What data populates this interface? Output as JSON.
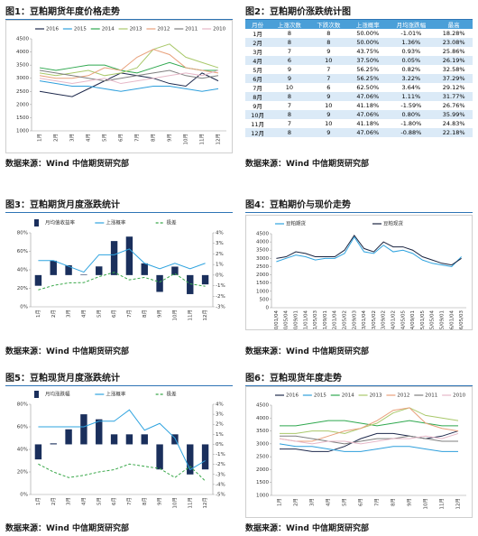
{
  "panels": [
    {
      "title": "图1：豆粕期货年度价格走势",
      "source": "数据来源：Wind 中信期货研究部",
      "chart_data": {
        "type": "line",
        "categories": [
          "1月",
          "2月",
          "3月",
          "4月",
          "5月",
          "6月",
          "7月",
          "8月",
          "9月",
          "10月",
          "11月",
          "12月"
        ],
        "series": [
          {
            "name": "2016",
            "color": "#1f2a4d",
            "values": [
              2500,
              2400,
              2300,
              2600,
              2900,
              3200,
              3100,
              3000,
              2800,
              2700,
              3200,
              2900
            ]
          },
          {
            "name": "2015",
            "color": "#2e9fdc",
            "values": [
              2900,
              2800,
              2700,
              2700,
              2600,
              2500,
              2600,
              2700,
              2700,
              2600,
              2500,
              2600
            ]
          },
          {
            "name": "2014",
            "color": "#2fa84f",
            "values": [
              3400,
              3300,
              3400,
              3500,
              3500,
              3300,
              3200,
              3400,
              3600,
              3400,
              3300,
              3300
            ]
          },
          {
            "name": "2013",
            "color": "#a9c86a",
            "values": [
              3200,
              3100,
              3200,
              3300,
              3100,
              3200,
              3400,
              4100,
              4300,
              3800,
              3600,
              3400
            ]
          },
          {
            "name": "2012",
            "color": "#e8a07a",
            "values": [
              3100,
              3000,
              3000,
              3100,
              3400,
              3300,
              3800,
              4100,
              3900,
              3400,
              3300,
              3200
            ]
          },
          {
            "name": "2011",
            "color": "#7f7f7f",
            "values": [
              3300,
              3200,
              3100,
              3000,
              2900,
              3000,
              3100,
              3200,
              3300,
              3100,
              3000,
              3100
            ]
          },
          {
            "name": "2010",
            "color": "#e6b8c8",
            "values": [
              3000,
              2900,
              2800,
              2900,
              3000,
              2800,
              2900,
              3000,
              3100,
              3200,
              3100,
              3300
            ]
          }
        ],
        "ylim": [
          1000,
          4500
        ],
        "yticks": [
          1000,
          1500,
          2000,
          2500,
          3000,
          3500,
          4000,
          4500
        ],
        "grid": false
      }
    },
    {
      "title": "图2：豆粕期价涨跌统计图",
      "source": "数据来源：Wind 中信期货研究部",
      "table": {
        "header": [
          "月份",
          "上涨次数",
          "下跌次数",
          "上涨概率",
          "月均涨跌幅",
          "最高"
        ],
        "rows": [
          [
            "1月",
            "8",
            "8",
            "50.00%",
            "-1.01%",
            "18.28%"
          ],
          [
            "2月",
            "8",
            "8",
            "50.00%",
            "1.36%",
            "23.08%"
          ],
          [
            "3月",
            "7",
            "9",
            "43.75%",
            "0.93%",
            "25.86%"
          ],
          [
            "4月",
            "6",
            "10",
            "37.50%",
            "0.05%",
            "26.19%"
          ],
          [
            "5月",
            "9",
            "7",
            "56.25%",
            "0.82%",
            "32.58%"
          ],
          [
            "6月",
            "9",
            "7",
            "56.25%",
            "3.22%",
            "37.29%"
          ],
          [
            "7月",
            "10",
            "6",
            "62.50%",
            "3.64%",
            "29.12%"
          ],
          [
            "8月",
            "8",
            "9",
            "47.06%",
            "1.11%",
            "31.77%"
          ],
          [
            "9月",
            "7",
            "10",
            "41.18%",
            "-1.59%",
            "26.76%"
          ],
          [
            "10月",
            "8",
            "9",
            "47.06%",
            "0.80%",
            "35.99%"
          ],
          [
            "11月",
            "7",
            "10",
            "41.18%",
            "-1.80%",
            "24.83%"
          ],
          [
            "12月",
            "8",
            "9",
            "47.06%",
            "-0.88%",
            "22.18%"
          ]
        ]
      }
    },
    {
      "title": "图3：豆粕期货月度涨跌统计",
      "source": "数据来源：Wind 中信期货研究部",
      "chart_data": {
        "type": "combo",
        "categories": [
          "1月",
          "2月",
          "3月",
          "4月",
          "5月",
          "6月",
          "7月",
          "8月",
          "9月",
          "10月",
          "11月",
          "12月"
        ],
        "series": [
          {
            "name": "月均值收益率",
            "type": "bar",
            "axis": "y2",
            "color": "#1a2f5c",
            "values": [
              -1.01,
              1.36,
              0.93,
              0.05,
              0.82,
              3.22,
              3.64,
              1.11,
              -1.59,
              0.8,
              -1.8,
              -0.88
            ]
          },
          {
            "name": "上涨概率",
            "type": "line",
            "color": "#2ea3df",
            "values": [
              50.0,
              50.0,
              43.75,
              37.5,
              56.25,
              56.25,
              62.5,
              47.06,
              41.18,
              47.06,
              41.18,
              47.06
            ]
          },
          {
            "name": "极差",
            "type": "line",
            "dash": true,
            "color": "#3aa84a",
            "values": [
              18.28,
              23.08,
              25.86,
              26.19,
              32.58,
              37.29,
              29.12,
              31.77,
              26.76,
              35.99,
              24.83,
              22.18
            ]
          }
        ],
        "ylim": [
          0,
          80
        ],
        "yticks": [
          {
            "value": 0,
            "label": "0%"
          },
          {
            "value": 20,
            "label": "20%"
          },
          {
            "value": 40,
            "label": "40%"
          },
          {
            "value": 60,
            "label": "60%"
          },
          {
            "value": 80,
            "label": "80%"
          }
        ],
        "y2lim": [
          -3,
          4
        ],
        "y2ticks": [
          {
            "value": -3,
            "label": "-3%"
          },
          {
            "value": -2,
            "label": "-2%"
          },
          {
            "value": -1,
            "label": "-1%"
          },
          {
            "value": 0,
            "label": "0%"
          },
          {
            "value": 1,
            "label": "1%"
          },
          {
            "value": 2,
            "label": "2%"
          },
          {
            "value": 3,
            "label": "3%"
          },
          {
            "value": 4,
            "label": "4%"
          }
        ],
        "grid": false
      }
    },
    {
      "title": "图4：豆粕期价与现价走势",
      "source": "数据来源：Wind 中信期货研究部",
      "chart_data": {
        "type": "line",
        "categories": [
          "2010/01/04",
          "2010/05/04",
          "2010/09/01",
          "2011/01/04",
          "2011/05/03",
          "2011/09/01",
          "2012/01/04",
          "2012/05/02",
          "2012/09/03",
          "2013/01/04",
          "2013/05/02",
          "2013/09/02",
          "2014/01/02",
          "2014/05/05",
          "2014/09/01",
          "2015/01/05",
          "2015/05/04",
          "2015/09/01",
          "2016/01/04",
          "2016/05/03"
        ],
        "series": [
          {
            "name": "豆粕期货",
            "color": "#2ea3df",
            "values": [
              2800,
              3000,
              3200,
              3100,
              2900,
              3000,
              3000,
              3300,
              4300,
              3400,
              3300,
              3800,
              3400,
              3500,
              3300,
              2900,
              2700,
              2600,
              2500,
              3100
            ]
          },
          {
            "name": "豆粕现货",
            "color": "#1a2440",
            "values": [
              3000,
              3100,
              3400,
              3300,
              3100,
              3100,
              3100,
              3500,
              4400,
              3600,
              3400,
              4000,
              3700,
              3700,
              3500,
              3100,
              2900,
              2700,
              2600,
              3000
            ]
          }
        ],
        "ylim": [
          0,
          4500
        ],
        "yticks": [
          0,
          500,
          1000,
          1500,
          2000,
          2500,
          3000,
          3500,
          4000,
          4500
        ],
        "grid": false
      }
    },
    {
      "title": "图5：豆粕现货月度涨跌统计",
      "source": "数据来源：Wind 中信期货研究部",
      "chart_data": {
        "type": "combo",
        "categories": [
          "1月",
          "2月",
          "3月",
          "4月",
          "5月",
          "6月",
          "7月",
          "8月",
          "9月",
          "10月",
          "11月",
          "12月"
        ],
        "series": [
          {
            "name": "月均涨跌幅",
            "type": "bar",
            "axis": "y2",
            "color": "#1a2f5c",
            "values": [
              -1.5,
              0.1,
              1.5,
              3.0,
              2.5,
              1.0,
              1.0,
              1.0,
              -2.5,
              1.0,
              -3.0,
              -2.5
            ]
          },
          {
            "name": "上涨概率",
            "type": "line",
            "color": "#2ea3df",
            "values": [
              60,
              60,
              60,
              60,
              65,
              65,
              75,
              57,
              63,
              50,
              22,
              30
            ]
          },
          {
            "name": "极差",
            "type": "line",
            "dash": true,
            "color": "#3aa84a",
            "values": [
              27,
              20,
              15,
              17,
              20,
              22,
              27,
              25,
              23,
              15,
              25,
              12
            ]
          }
        ],
        "ylim": [
          0,
          80
        ],
        "yticks": [
          {
            "value": 0,
            "label": "0%"
          },
          {
            "value": 20,
            "label": "20%"
          },
          {
            "value": 40,
            "label": "40%"
          },
          {
            "value": 60,
            "label": "60%"
          },
          {
            "value": 80,
            "label": "80%"
          }
        ],
        "y2lim": [
          -5,
          4
        ],
        "y2ticks": [
          {
            "value": -5,
            "label": "-5%"
          },
          {
            "value": -4,
            "label": "-4%"
          },
          {
            "value": -3,
            "label": "-3%"
          },
          {
            "value": -2,
            "label": "-2%"
          },
          {
            "value": -1,
            "label": "-1%"
          },
          {
            "value": 0,
            "label": "0%"
          },
          {
            "value": 1,
            "label": "1%"
          },
          {
            "value": 2,
            "label": "2%"
          },
          {
            "value": 3,
            "label": "3%"
          },
          {
            "value": 4,
            "label": "4%"
          }
        ],
        "grid": false
      }
    },
    {
      "title": "图6：豆粕现货年度走势",
      "source": "数据来源：Wind 中信期货研究部",
      "chart_data": {
        "type": "line",
        "categories": [
          "1月",
          "2月",
          "3月",
          "4月",
          "5月",
          "6月",
          "7月",
          "8月",
          "9月",
          "10月",
          "11月",
          "12月"
        ],
        "series": [
          {
            "name": "2016",
            "color": "#1f2a4d",
            "values": [
              2800,
              2800,
              2700,
              2700,
              2900,
              3200,
              3400,
              3400,
              3300,
              3200,
              3300,
              3500
            ]
          },
          {
            "name": "2015",
            "color": "#2e9fdc",
            "values": [
              3000,
              2900,
              2900,
              2800,
              2700,
              2700,
              2800,
              2900,
              2900,
              2800,
              2700,
              2700
            ]
          },
          {
            "name": "2014",
            "color": "#2fa84f",
            "values": [
              3700,
              3700,
              3800,
              3900,
              3900,
              3800,
              3700,
              3800,
              3900,
              3800,
              3700,
              3700
            ]
          },
          {
            "name": "2013",
            "color": "#a9c86a",
            "values": [
              3400,
              3400,
              3500,
              3500,
              3400,
              3600,
              3800,
              4200,
              4400,
              4100,
              4000,
              3900
            ]
          },
          {
            "name": "2012",
            "color": "#e8a07a",
            "values": [
              3200,
              3100,
              3100,
              3300,
              3500,
              3600,
              3900,
              4300,
              4400,
              3800,
              3600,
              3500
            ]
          },
          {
            "name": "2011",
            "color": "#7f7f7f",
            "values": [
              3300,
              3300,
              3200,
              3100,
              3000,
              3100,
              3200,
              3200,
              3300,
              3200,
              3100,
              3100
            ]
          },
          {
            "name": "2010",
            "color": "#e6b8c8",
            "values": [
              3200,
              3100,
              3000,
              3100,
              3100,
              3000,
              3100,
              3200,
              3200,
              3300,
              3200,
              3400
            ]
          }
        ],
        "ylim": [
          1000,
          4500
        ],
        "yticks": [
          1000,
          1500,
          2000,
          2500,
          3000,
          3500,
          4000,
          4500
        ],
        "grid": false
      }
    }
  ]
}
